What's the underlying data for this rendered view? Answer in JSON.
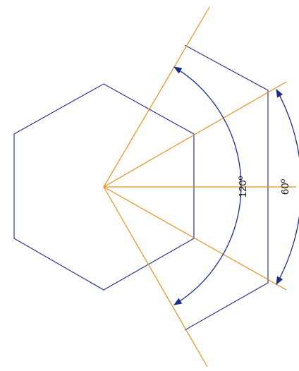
{
  "colors": {
    "outline": "#2b3a8c",
    "construction": "#e8901c",
    "arrow": "#1c2e8c",
    "background": "#ffffff"
  },
  "labels": {
    "angle_large": "120º",
    "angle_small": "60º"
  }
}
